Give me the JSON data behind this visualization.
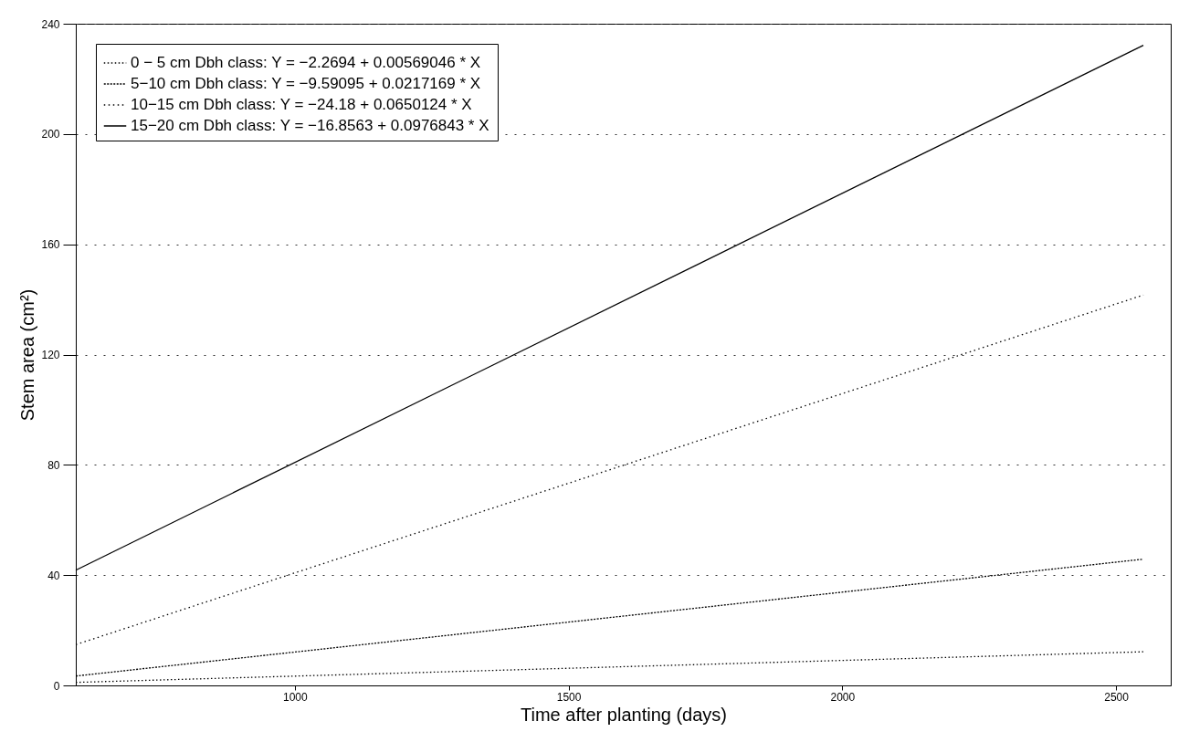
{
  "chart_data": {
    "type": "line",
    "xlabel": "Time after planting (days)",
    "ylabel": "Stem area (cm²)",
    "xlim": [
      600,
      2600
    ],
    "xticks": [
      {
        "value": 1000,
        "label": "1000"
      },
      {
        "value": 1500,
        "label": "1500"
      },
      {
        "value": 2000,
        "label": "2000"
      },
      {
        "value": 2500,
        "label": "2500"
      }
    ],
    "ylim": [
      0,
      240
    ],
    "yticks": [
      0,
      40,
      80,
      120,
      160,
      200,
      240
    ],
    "grid": "y",
    "x": [
      600,
      2550
    ],
    "legend": "top left",
    "marker": "none",
    "series": [
      {
        "name": "0 − 5 cm Dbh class: Y = −2.2694 + 0.00569046 * X",
        "color": "#000000",
        "line_style": "dotted",
        "values": [
          1.1,
          12.2
        ]
      },
      {
        "name": "5−10 cm Dbh class: Y = −9.59095 + 0.0217169 * X",
        "color": "#000000",
        "line_style": "dotted",
        "values": [
          3.4,
          45.8
        ]
      },
      {
        "name": "10−15 cm Dbh class: Y = −24.18 + 0.0650124 * X",
        "color": "#000000",
        "line_style": "dotted",
        "values": [
          14.8,
          141.6
        ]
      },
      {
        "name": "15−20 cm Dbh class: Y = −16.8563 + 0.0976843 * X",
        "color": "#000000",
        "line_style": "solid",
        "values": [
          41.8,
          232.2
        ]
      }
    ]
  }
}
